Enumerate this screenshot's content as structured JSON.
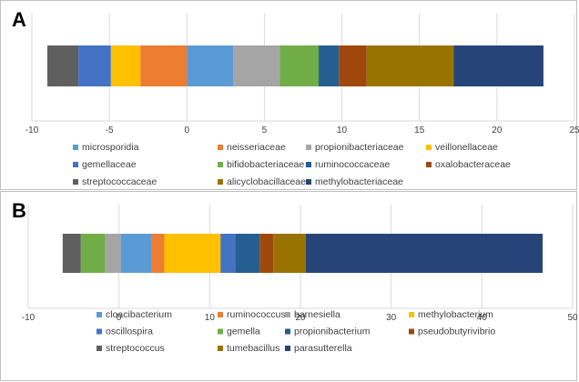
{
  "chart_data": [
    {
      "type": "bar",
      "panel_label": "A",
      "orientation": "horizontal",
      "stacked": true,
      "xlim": [
        -10,
        25
      ],
      "xticks": [
        -10,
        -5,
        0,
        5,
        10,
        15,
        20,
        25
      ],
      "grid": "vertical",
      "legend_position": "bottom",
      "series": [
        {
          "name": "streptococcaceae",
          "start": -9,
          "end": -7,
          "color": "#5f5f5f"
        },
        {
          "name": "gemellaceae",
          "start": -7,
          "end": -4.9,
          "color": "#4472c4"
        },
        {
          "name": "veillonellaceae",
          "start": -4.9,
          "end": -3,
          "color": "#ffc000"
        },
        {
          "name": "neisseriaceae",
          "start": -3,
          "end": 0,
          "color": "#ed7d31"
        },
        {
          "name": "microsporidia",
          "start": 0,
          "end": 3,
          "color": "#5b9bd5"
        },
        {
          "name": "propionibacteriaceae",
          "start": 3,
          "end": 6,
          "color": "#a5a5a5"
        },
        {
          "name": "bifidobacteriaceae",
          "start": 6,
          "end": 8.5,
          "color": "#70ad47"
        },
        {
          "name": "ruminococcaceae",
          "start": 8.5,
          "end": 9.8,
          "color": "#255e91"
        },
        {
          "name": "oxalobacteraceae",
          "start": 9.8,
          "end": 11.6,
          "color": "#9e480e"
        },
        {
          "name": "alicyclobacillaceae",
          "start": 11.6,
          "end": 17.2,
          "color": "#997300"
        },
        {
          "name": "methylobacteriaceae",
          "start": 17.2,
          "end": 23,
          "color": "#264478"
        }
      ],
      "legend": [
        [
          "microsporidia",
          "neisseriaceae",
          "propionibacteriaceae",
          "veillonellaceae"
        ],
        [
          "gemellaceae",
          "bifidobacteriaceae",
          "ruminococcaceae",
          "oxalobacteraceae"
        ],
        [
          "streptococcaceae",
          "alicyclobacillaceae",
          "methylobacteriaceae"
        ]
      ]
    },
    {
      "type": "bar",
      "panel_label": "B",
      "orientation": "horizontal",
      "stacked": true,
      "xlim": [
        -10,
        50
      ],
      "xticks": [
        -10,
        0,
        10,
        20,
        30,
        40,
        50
      ],
      "grid": "vertical",
      "legend_position": "bottom",
      "series": [
        {
          "name": "streptococcus",
          "start": -6.2,
          "end": -4.2,
          "color": "#5f5f5f"
        },
        {
          "name": "gemella",
          "start": -4.2,
          "end": -1.5,
          "color": "#70ad47"
        },
        {
          "name": "barnesiella",
          "start": -1.5,
          "end": 0.2,
          "color": "#a5a5a5"
        },
        {
          "name": "cloacibacterium",
          "start": 0.2,
          "end": 3.6,
          "color": "#5b9bd5"
        },
        {
          "name": "ruminococcus",
          "start": 3.6,
          "end": 5,
          "color": "#ed7d31"
        },
        {
          "name": "methylobacterium",
          "start": 5,
          "end": 11.2,
          "color": "#ffc000"
        },
        {
          "name": "oscillospira",
          "start": 11.2,
          "end": 12.8,
          "color": "#4472c4"
        },
        {
          "name": "propionibacterium",
          "start": 12.8,
          "end": 15.5,
          "color": "#255e91"
        },
        {
          "name": "pseudobutyrivibrio",
          "start": 15.5,
          "end": 17,
          "color": "#9e480e"
        },
        {
          "name": "tumebacillus",
          "start": 17,
          "end": 20.6,
          "color": "#997300"
        },
        {
          "name": "parasutterella",
          "start": 20.6,
          "end": 46.7,
          "color": "#264478"
        }
      ],
      "legend": [
        [
          "cloacibacterium",
          "ruminococcus",
          "barnesiella",
          "methylobacterium"
        ],
        [
          "oscillospira",
          "gemella",
          "propionibacterium",
          "pseudobutyrivibrio"
        ],
        [
          "streptococcus",
          "tumebacillus",
          "parasutterella"
        ]
      ]
    }
  ]
}
